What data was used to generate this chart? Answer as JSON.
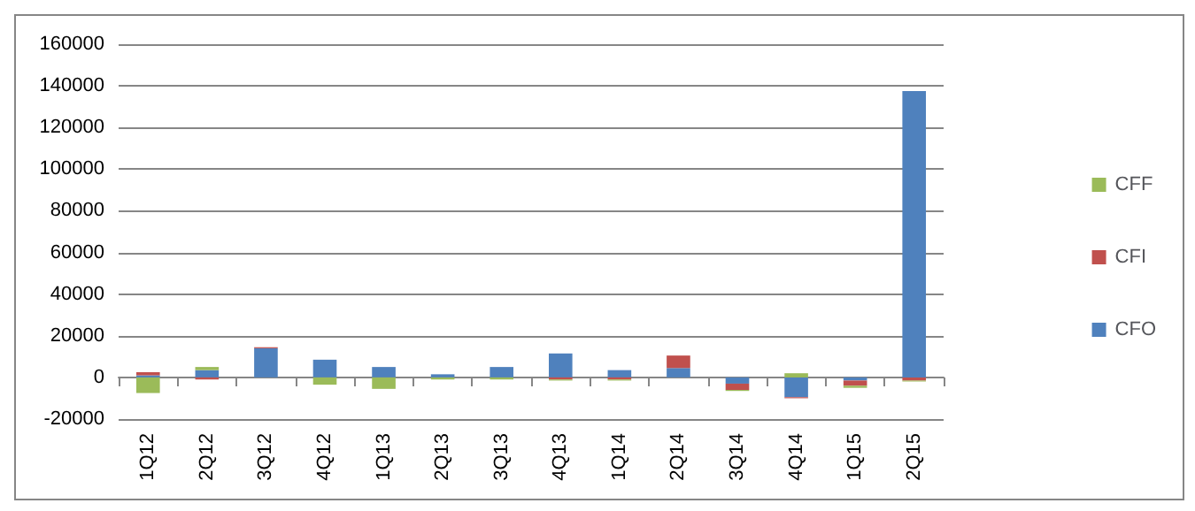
{
  "chart_data": {
    "type": "bar",
    "stacked": true,
    "categories": [
      "1Q12",
      "2Q12",
      "3Q12",
      "4Q12",
      "1Q13",
      "2Q13",
      "3Q13",
      "4Q13",
      "1Q14",
      "2Q14",
      "3Q14",
      "4Q14",
      "1Q15",
      "2Q15"
    ],
    "series": [
      {
        "name": "CFO",
        "color": "#4f81bd",
        "values": [
          1000,
          3500,
          14000,
          8500,
          5000,
          1500,
          5000,
          11500,
          3500,
          4500,
          -3000,
          -9500,
          -1500,
          137500
        ]
      },
      {
        "name": "CFI",
        "color": "#c0504d",
        "values": [
          1500,
          -1000,
          500,
          0,
          0,
          0,
          0,
          -1000,
          -1000,
          6000,
          -3000,
          -500,
          -2500,
          -1500
        ]
      },
      {
        "name": "CFF",
        "color": "#9bbb59",
        "values": [
          -7500,
          1500,
          0,
          -3500,
          -5500,
          -1000,
          -1000,
          -500,
          -500,
          0,
          -500,
          2000,
          -1000,
          -500
        ]
      }
    ],
    "ylim": [
      -20000,
      160000
    ],
    "yticks": [
      -20000,
      0,
      20000,
      40000,
      60000,
      80000,
      100000,
      120000,
      140000,
      160000
    ],
    "grid": "y",
    "legend": "right"
  }
}
